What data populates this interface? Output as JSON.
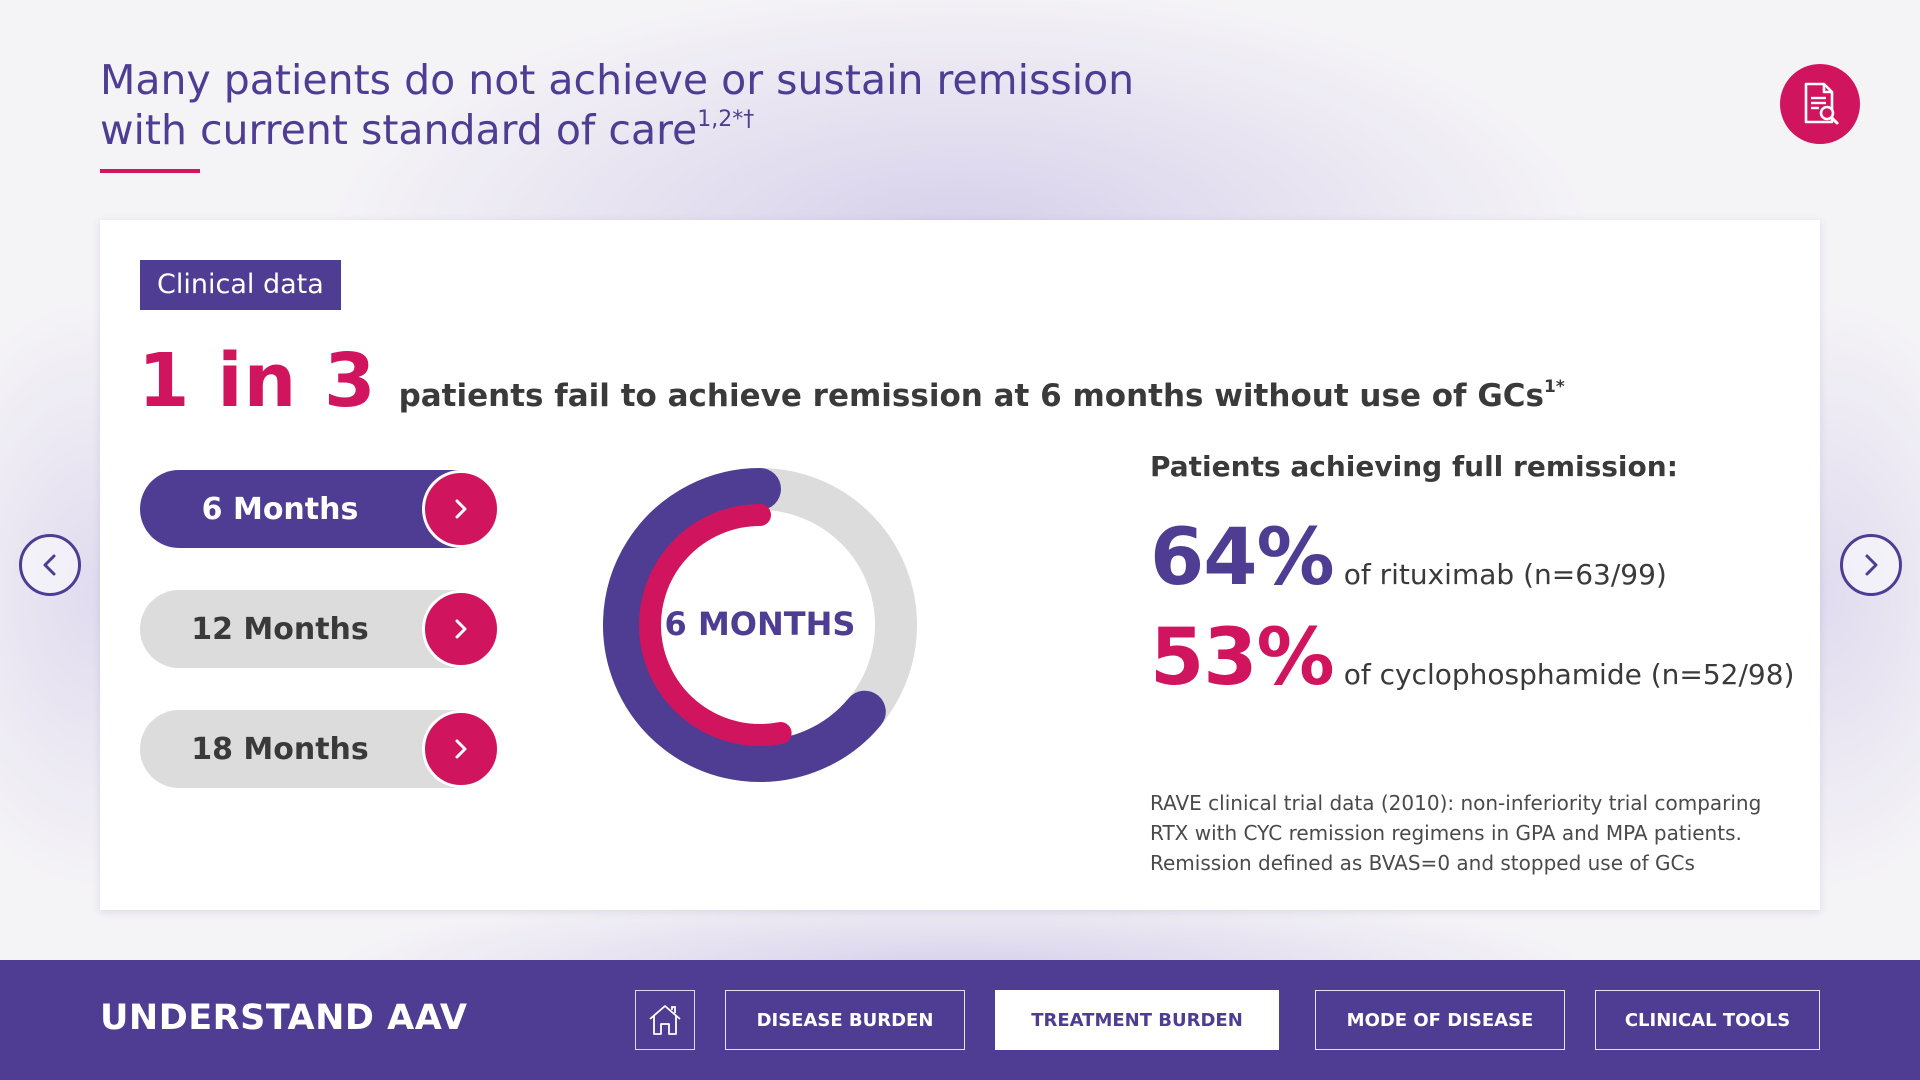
{
  "header": {
    "title_line1": "Many patients do not achieve or sustain remission",
    "title_line2": "with current standard of care",
    "title_sup": "1,2*†",
    "doc_icon": "document-search-icon"
  },
  "card": {
    "tag": "Clinical data",
    "big_stat": "1 in 3",
    "headline": "patients fail to achieve remission at 6 months without use of GCs",
    "headline_sup": "1*",
    "timepoints": [
      {
        "label": "6 Months",
        "active": true
      },
      {
        "label": "12 Months",
        "active": false
      },
      {
        "label": "18 Months",
        "active": false
      }
    ],
    "donut_label": "6 MONTHS",
    "donut_values": {
      "rituximab_pct": 64,
      "cyclophosphamide_pct": 53
    },
    "right_heading": "Patients achieving full remission:",
    "stats": [
      {
        "value": "64%",
        "desc": "of rituximab (n=63/99)"
      },
      {
        "value": "53%",
        "desc": "of cyclophosphamide (n=52/98)"
      }
    ],
    "footnote": [
      "RAVE clinical trial data (2010): non-inferiority trial comparing",
      "RTX with CYC remission regimens in GPA and MPA patients.",
      "Remission defined as BVAS=0 and stopped use of GCs"
    ]
  },
  "nav": {
    "prev_icon": "chevron-left-icon",
    "next_icon": "chevron-right-icon"
  },
  "bottom_bar": {
    "brand": "UNDERSTAND AAV",
    "home_icon": "home-icon",
    "buttons": [
      "DISEASE BURDEN",
      "TREATMENT BURDEN",
      "MODE OF DISEASE",
      "CLINICAL TOOLS"
    ],
    "current": "TREATMENT BURDEN"
  },
  "colors": {
    "purple": "#4e3d92",
    "pink": "#d1145e",
    "grey": "#dcdcdc"
  }
}
